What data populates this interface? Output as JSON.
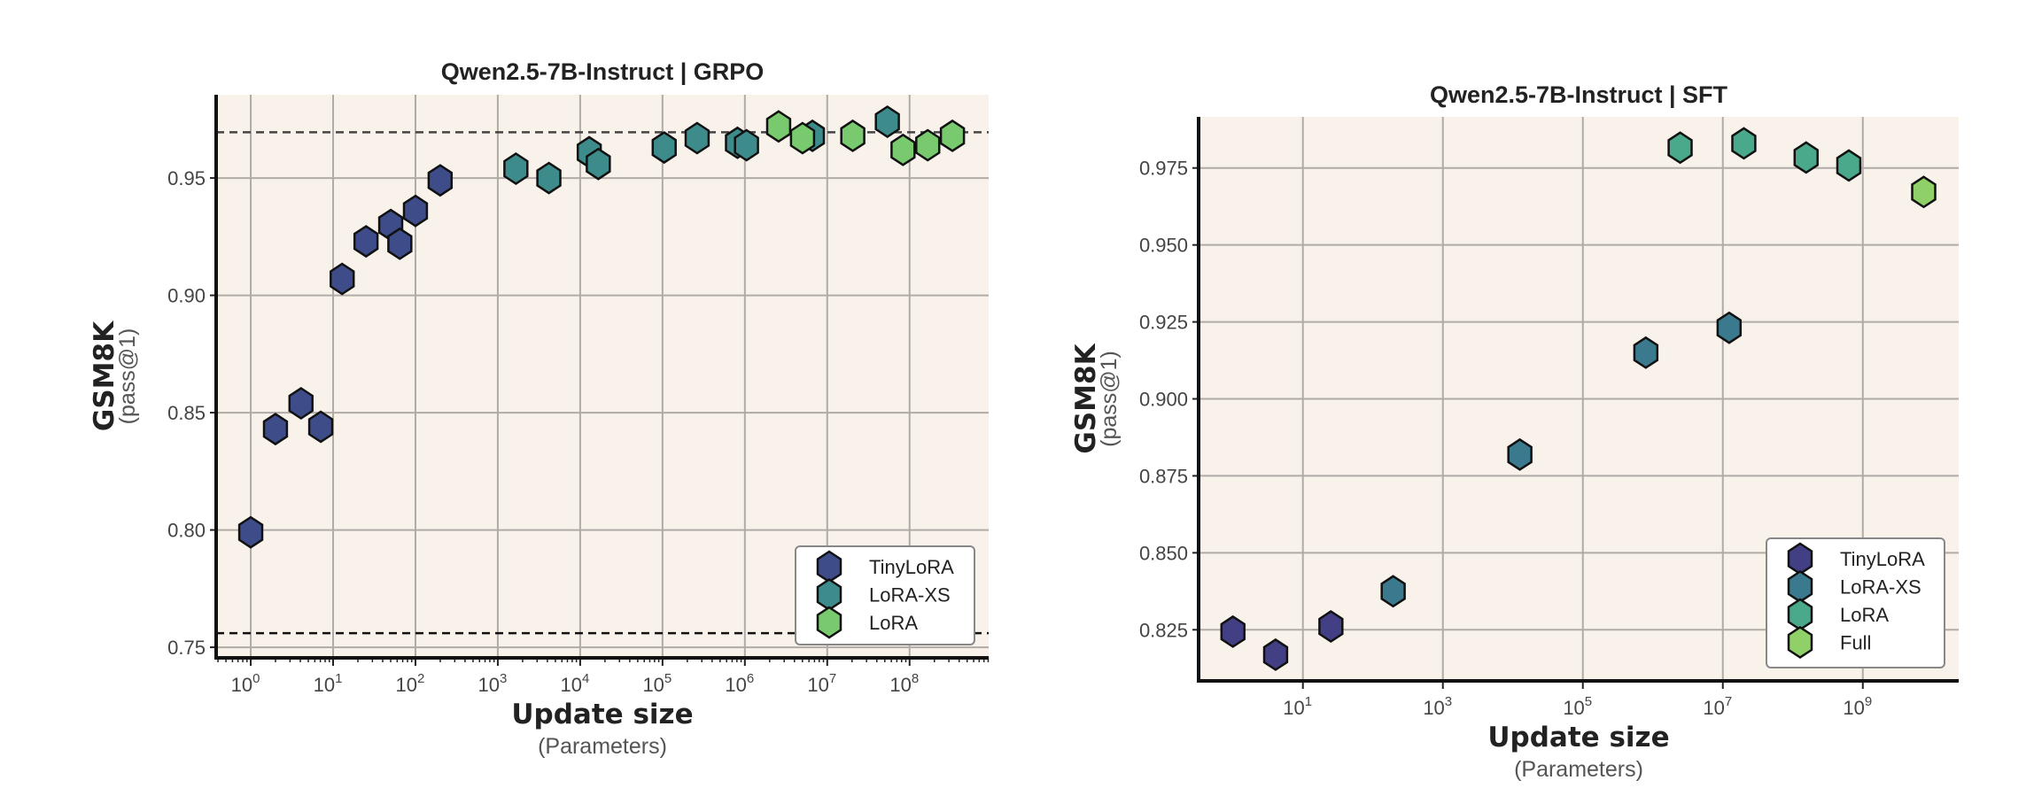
{
  "chart_data": [
    {
      "type": "scatter",
      "title": "Qwen2.5-7B-Instruct  |  GRPO",
      "xlabel": "Update size",
      "xlabel_sub": "(Parameters)",
      "ylabel": "GSM8K",
      "ylabel_sub": "(pass@1)",
      "xscale": "log",
      "xlim_log10": [
        -0.42,
        8.96
      ],
      "ylim": [
        0.7455,
        0.9855
      ],
      "xticks_log10": [
        0,
        1,
        2,
        3,
        4,
        5,
        6,
        7,
        8
      ],
      "yticks": [
        "0.75",
        "0.80",
        "0.85",
        "0.90",
        "0.95"
      ],
      "minor_ticks": true,
      "grid": true,
      "legend_position": "lower-right",
      "reference_lines": [
        0.9695,
        0.756
      ],
      "series": [
        {
          "name": "TinyLoRA",
          "color": "#3e4d8a",
          "points": [
            [
              0,
              0.799
            ],
            [
              0.3,
              0.843
            ],
            [
              0.61,
              0.854
            ],
            [
              0.85,
              0.844
            ],
            [
              1.11,
              0.907
            ],
            [
              1.4,
              0.923
            ],
            [
              1.7,
              0.93
            ],
            [
              1.81,
              0.922
            ],
            [
              2.0,
              0.936
            ],
            [
              2.3,
              0.949
            ]
          ]
        },
        {
          "name": "LoRA-XS",
          "color": "#3d8b8a",
          "points": [
            [
              3.22,
              0.954
            ],
            [
              3.62,
              0.95
            ],
            [
              4.11,
              0.961
            ],
            [
              4.22,
              0.956
            ],
            [
              5.02,
              0.963
            ],
            [
              5.42,
              0.967
            ],
            [
              5.91,
              0.965
            ],
            [
              6.02,
              0.964
            ],
            [
              6.82,
              0.968
            ],
            [
              7.73,
              0.974
            ]
          ]
        },
        {
          "name": "LoRA",
          "color": "#79c96e",
          "points": [
            [
              6.41,
              0.972
            ],
            [
              6.7,
              0.967
            ],
            [
              7.31,
              0.968
            ],
            [
              7.92,
              0.962
            ],
            [
              8.22,
              0.964
            ],
            [
              8.52,
              0.968
            ]
          ]
        }
      ]
    },
    {
      "type": "scatter",
      "title": "Qwen2.5-7B-Instruct  |  SFT",
      "xlabel": "Update size",
      "xlabel_sub": "(Parameters)",
      "ylabel": "GSM8K",
      "ylabel_sub": "(pass@1)",
      "xscale": "log",
      "xlim_log10": [
        -0.49,
        10.37
      ],
      "ylim": [
        0.8084,
        0.9916
      ],
      "xticks_log10": [
        1,
        3,
        5,
        7,
        9
      ],
      "yticks": [
        "0.825",
        "0.850",
        "0.875",
        "0.900",
        "0.925",
        "0.950",
        "0.975"
      ],
      "minor_ticks": false,
      "grid": true,
      "legend_position": "lower-right",
      "reference_lines": [],
      "series": [
        {
          "name": "TinyLoRA",
          "color": "#433f85",
          "points": [
            [
              0.0,
              0.8244
            ],
            [
              0.61,
              0.8169
            ],
            [
              1.4,
              0.8261
            ]
          ]
        },
        {
          "name": "LoRA-XS",
          "color": "#3b7a8e",
          "points": [
            [
              2.29,
              0.8375
            ],
            [
              4.1,
              0.8819
            ],
            [
              5.9,
              0.915
            ],
            [
              7.09,
              0.9231
            ]
          ]
        },
        {
          "name": "LoRA",
          "color": "#4aa98a",
          "points": [
            [
              6.39,
              0.9816
            ],
            [
              7.3,
              0.983
            ],
            [
              8.19,
              0.9784
            ],
            [
              8.8,
              0.9758
            ]
          ]
        },
        {
          "name": "Full",
          "color": "#8fd168",
          "points": [
            [
              9.87,
              0.9672
            ]
          ]
        }
      ]
    }
  ]
}
